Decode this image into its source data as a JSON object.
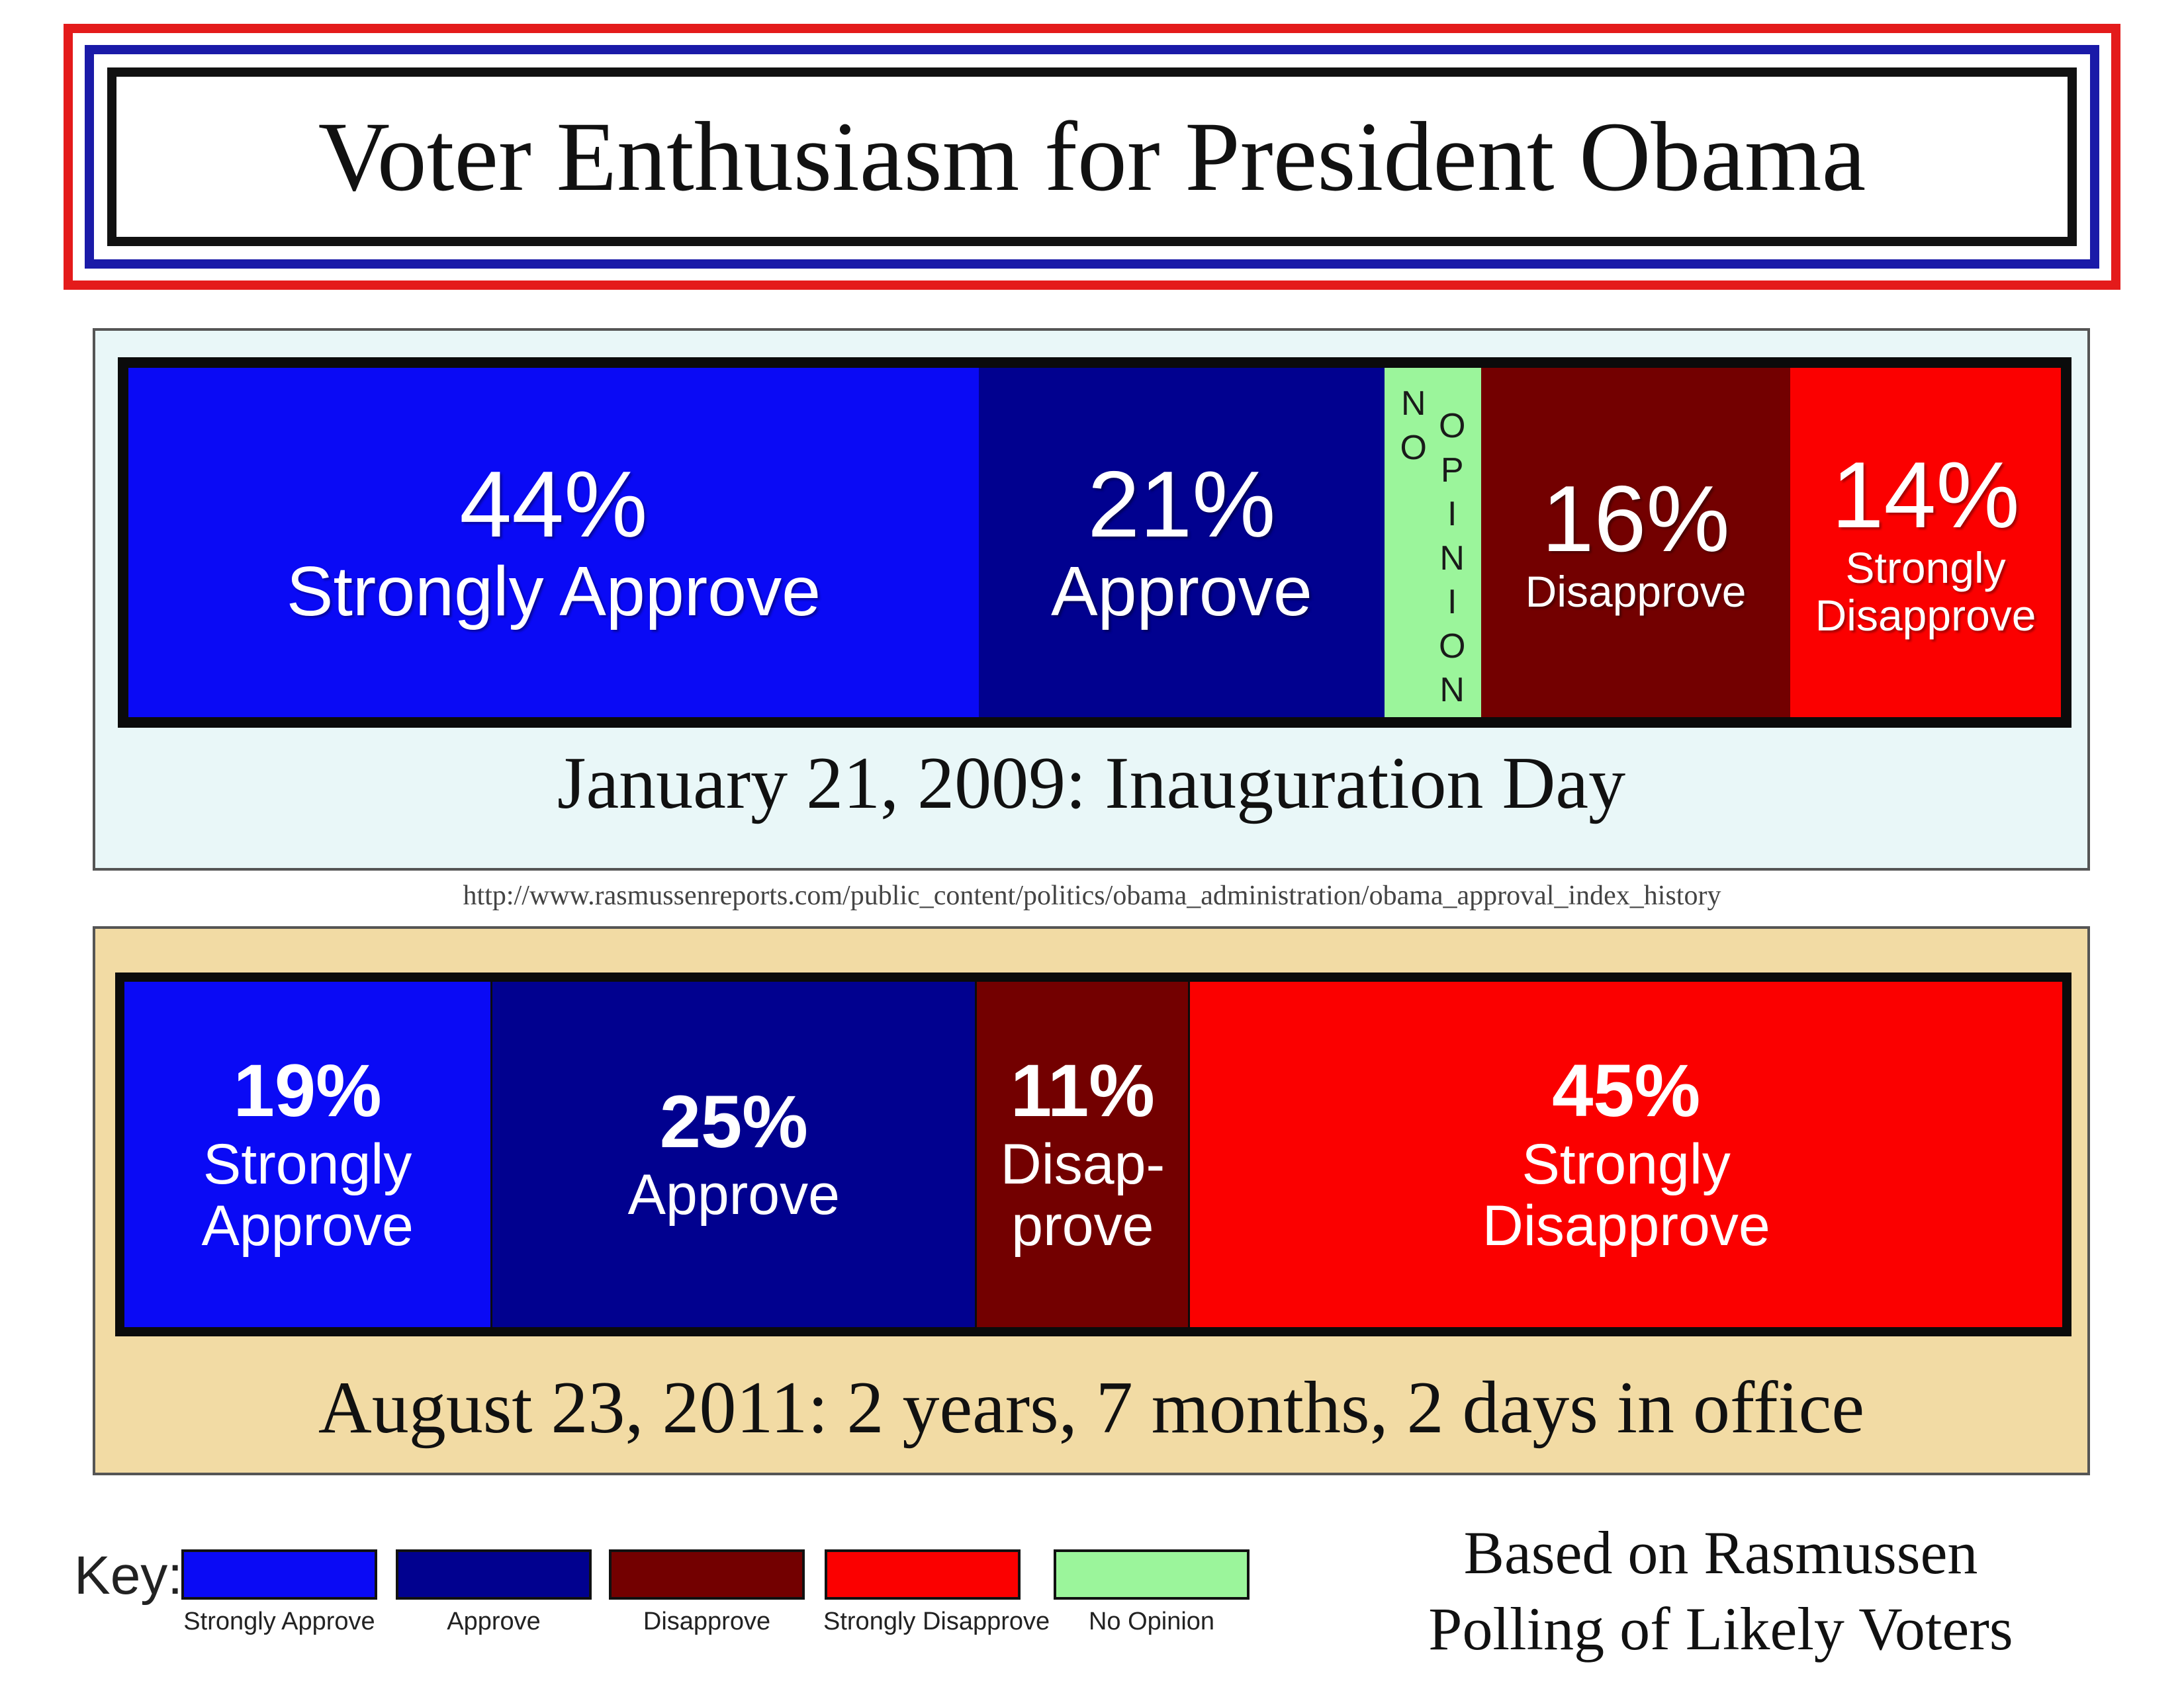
{
  "title": "Voter Enthusiasm for President Obama",
  "source_url": "http://www.rasmussenreports.com/public_content/politics/obama_administration/obama_approval_index_history",
  "key": {
    "label": "Key:",
    "items": [
      {
        "label": "Strongly Approve",
        "color": "#0a0af5"
      },
      {
        "label": "Approve",
        "color": "#01018f"
      },
      {
        "label": "Disapprove",
        "color": "#730000"
      },
      {
        "label": "Strongly Disapprove",
        "color": "#fb0000"
      },
      {
        "label": "No Opinion",
        "color": "#9bf59b"
      }
    ]
  },
  "footer": {
    "line1": "Based on Rasmussen",
    "line2": "Polling of Likely Voters"
  },
  "chart_data": [
    {
      "type": "bar",
      "orientation": "horizontal-stacked",
      "title": "January 21, 2009: Inauguration Day",
      "categories": [
        "Strongly Approve",
        "Approve",
        "No Opinion",
        "Disapprove",
        "Strongly Disapprove"
      ],
      "values": [
        44,
        21,
        5,
        16,
        14
      ],
      "unit": "%",
      "segments": [
        {
          "pct": "44%",
          "label": "Strongly Approve",
          "color": "#0a0af5"
        },
        {
          "pct": "21%",
          "label": "Approve",
          "color": "#01018f"
        },
        {
          "pct": "",
          "label": "NO OPINION",
          "vertical_cols": [
            "NO",
            "OPINION"
          ],
          "color": "#9bf59b"
        },
        {
          "pct": "16%",
          "label": "Disapprove",
          "color": "#730000"
        },
        {
          "pct": "14%",
          "label": "Strongly\nDisapprove",
          "color": "#fb0000"
        }
      ]
    },
    {
      "type": "bar",
      "orientation": "horizontal-stacked",
      "title": "August 23, 2011: 2 years, 7 months, 2 days in office",
      "categories": [
        "Strongly Approve",
        "Approve",
        "Disapprove",
        "Strongly Disapprove"
      ],
      "values": [
        19,
        25,
        11,
        45
      ],
      "unit": "%",
      "segments": [
        {
          "pct": "19%",
          "label": "Strongly\nApprove",
          "color": "#0a0af5"
        },
        {
          "pct": "25%",
          "label": "Approve",
          "color": "#01018f"
        },
        {
          "pct": "11%",
          "label": "Disap-\nprove",
          "color": "#730000"
        },
        {
          "pct": "45%",
          "label": "Strongly\nDisapprove",
          "color": "#fb0000"
        }
      ]
    }
  ]
}
